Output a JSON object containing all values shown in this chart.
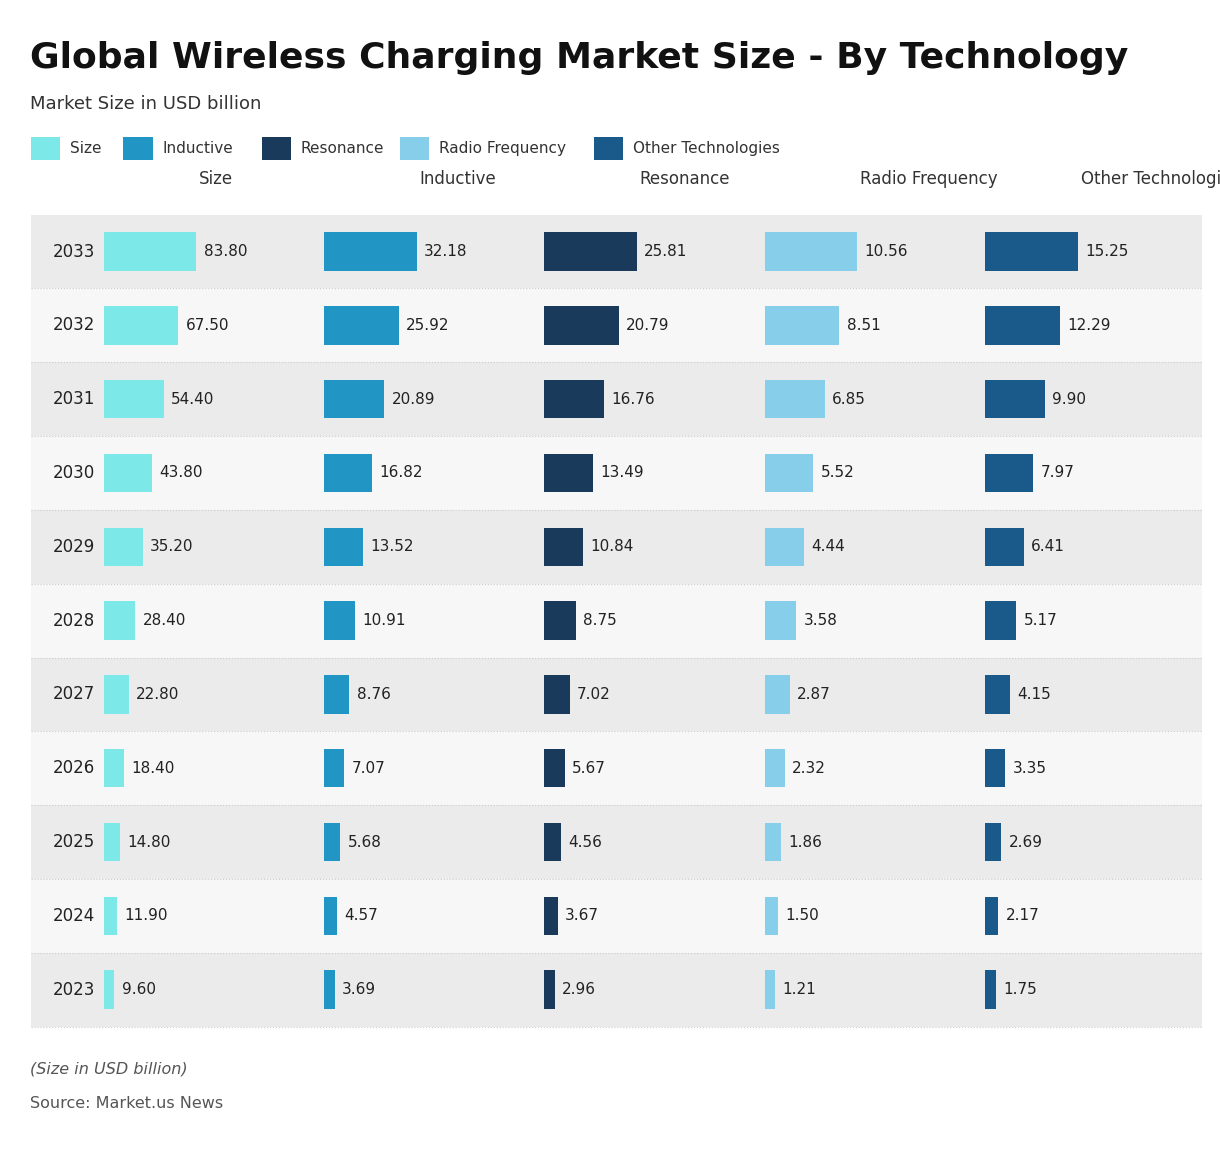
{
  "title": "Global Wireless Charging Market Size - By Technology",
  "subtitle": "Market Size in USD billion",
  "footnote": "(Size in USD billion)",
  "source": "Source: Market.us News",
  "years": [
    2033,
    2032,
    2031,
    2030,
    2029,
    2028,
    2027,
    2026,
    2025,
    2024,
    2023
  ],
  "columns": [
    "Size",
    "Inductive",
    "Resonance",
    "Radio Frequency",
    "Other Technologies"
  ],
  "colors": {
    "Size": "#7DE8E8",
    "Inductive": "#2196C4",
    "Resonance": "#1A3A5C",
    "Radio Frequency": "#87CEEB",
    "Other Technologies": "#1A5A8A"
  },
  "data": {
    "Size": [
      83.8,
      67.5,
      54.4,
      43.8,
      35.2,
      28.4,
      22.8,
      18.4,
      14.8,
      11.9,
      9.6
    ],
    "Inductive": [
      32.18,
      25.92,
      20.89,
      16.82,
      13.52,
      10.91,
      8.76,
      7.07,
      5.68,
      4.57,
      3.69
    ],
    "Resonance": [
      25.81,
      20.79,
      16.76,
      13.49,
      10.84,
      8.75,
      7.02,
      5.67,
      4.56,
      3.67,
      2.96
    ],
    "Radio Frequency": [
      10.56,
      8.51,
      6.85,
      5.52,
      4.44,
      3.58,
      2.87,
      2.32,
      1.86,
      1.5,
      1.21
    ],
    "Other Technologies": [
      15.25,
      12.29,
      9.9,
      7.97,
      6.41,
      5.17,
      4.15,
      3.35,
      2.69,
      2.17,
      1.75
    ]
  },
  "max_values": {
    "Size": 83.8,
    "Inductive": 32.18,
    "Resonance": 25.81,
    "Radio Frequency": 10.56,
    "Other Technologies": 15.25
  },
  "bg_color": "#FFFFFF",
  "row_bg_even": "#EBEBEB",
  "row_bg_odd": "#F7F7F7",
  "title_fontsize": 26,
  "subtitle_fontsize": 13,
  "legend_fontsize": 11,
  "header_fontsize": 12,
  "value_fontsize": 11,
  "year_fontsize": 12
}
